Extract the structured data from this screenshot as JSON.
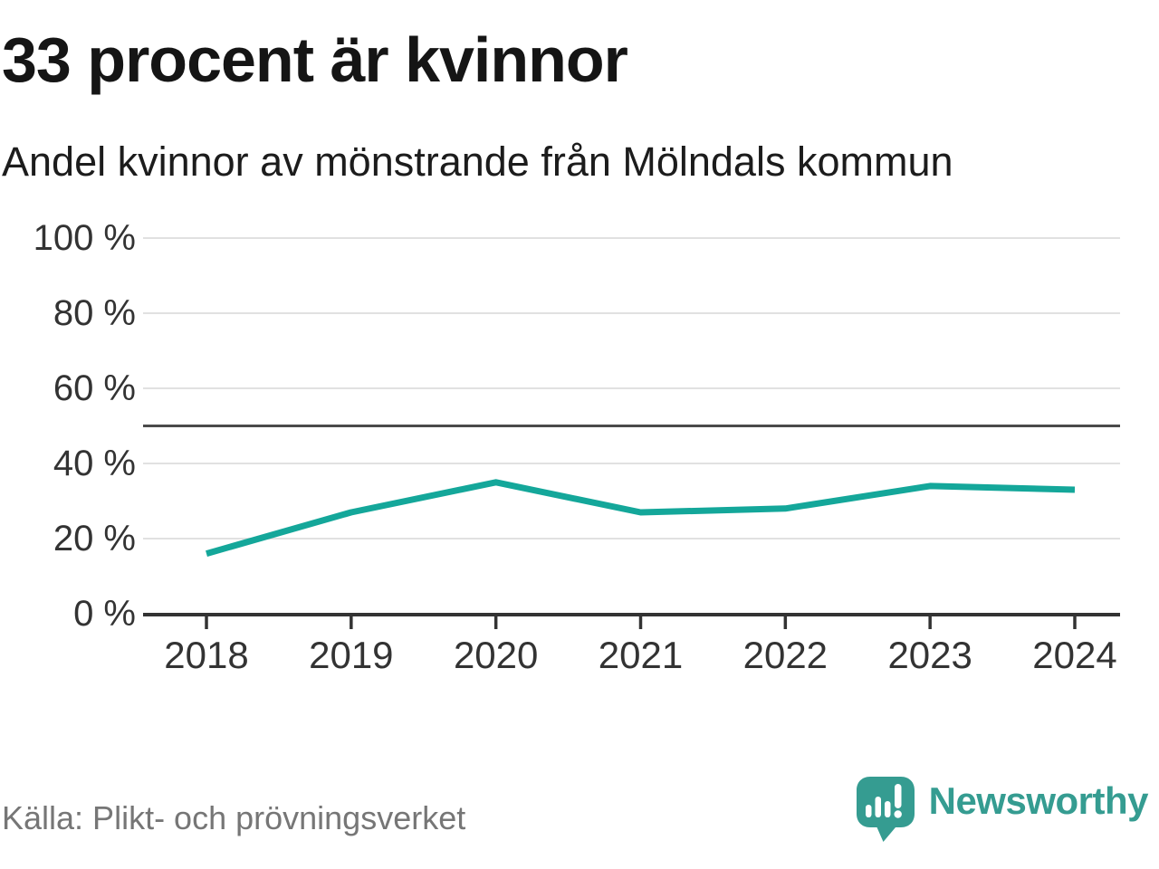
{
  "header": {
    "title": "33 procent är kvinnor",
    "subtitle": "Andel kvinnor av mönstrande från Mölndals kommun"
  },
  "chart_data": {
    "type": "line",
    "title": "33 procent är kvinnor",
    "subtitle": "Andel kvinnor av mönstrande från Mölndals kommun",
    "x": [
      "2018",
      "2019",
      "2020",
      "2021",
      "2022",
      "2023",
      "2024"
    ],
    "series": [
      {
        "name": "Andel kvinnor av mönstrande",
        "values": [
          16,
          27,
          35,
          27,
          28,
          34,
          33
        ]
      }
    ],
    "xlabel": "",
    "ylabel": "",
    "ylim": [
      0,
      100
    ],
    "yticks": [
      0,
      20,
      40,
      60,
      80,
      100
    ],
    "ytick_suffix": " %",
    "ytick_labels": [
      "0 %",
      "20 %",
      "40 %",
      "60 %",
      "80 %",
      "100 %"
    ],
    "reference_line": 50,
    "grid": true,
    "legend": "none",
    "colors": {
      "line": "#14a79a",
      "grid": "#e1e1e1",
      "axis": "#333333",
      "reference": "#4b4b4b",
      "tick_text": "#333333"
    }
  },
  "footer": {
    "source": "Källa: Plikt- och prövningsverket"
  },
  "logo": {
    "brand": "Newsworthy",
    "color": "#359c91",
    "icon": "bar-chart-speech-bubble"
  }
}
